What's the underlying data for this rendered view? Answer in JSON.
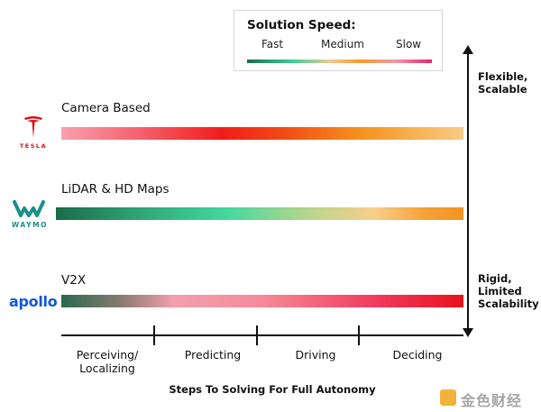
{
  "legend": {
    "title": "Solution Speed:",
    "fast": "Fast",
    "medium": "Medium",
    "slow": "Slow"
  },
  "rows": {
    "camera": {
      "label": "Camera Based",
      "brand": "TESLA"
    },
    "lidar": {
      "label": "LiDAR & HD Maps",
      "brand": "WAYMO"
    },
    "v2x": {
      "label": "V2X",
      "brand": "apollo"
    }
  },
  "side": {
    "top": [
      "Flexible,",
      "Scalable"
    ],
    "bottom": [
      "Rigid,",
      "Limited",
      "Scalability"
    ]
  },
  "steps": [
    [
      "Perceiving/",
      "Localizing"
    ],
    [
      "Predicting"
    ],
    [
      "Driving"
    ],
    [
      "Deciding"
    ]
  ],
  "axis_title": "Steps To Solving For Full Autonomy",
  "watermark": "金色财经",
  "colors": {
    "fast": "#1a6e4a",
    "medium": "#f39a2a",
    "slow": "#e8236a",
    "tesla": "#dd1111",
    "waymo": "#1b8f8a",
    "apollo": "#1457d9"
  }
}
